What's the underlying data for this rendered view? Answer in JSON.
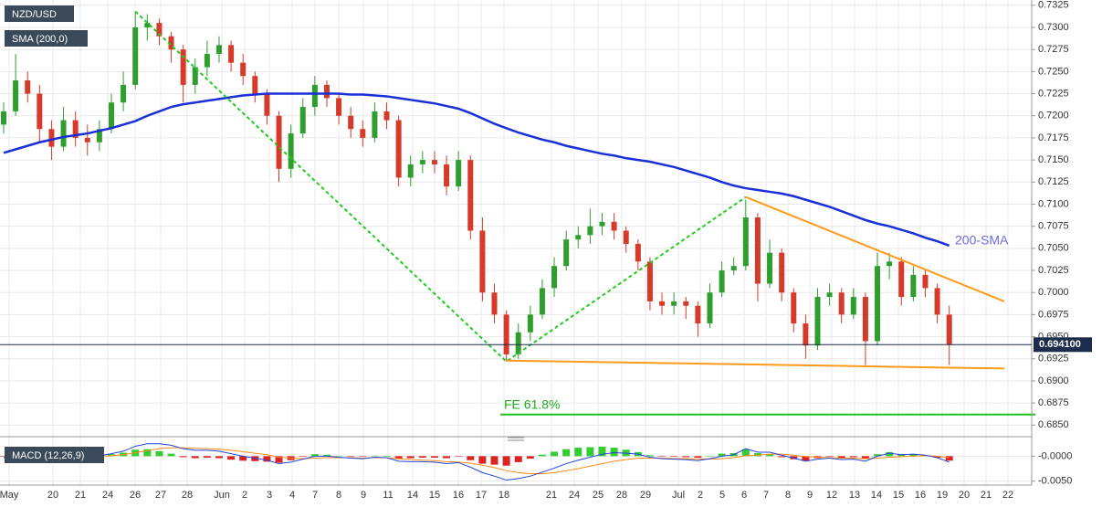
{
  "chart_data": {
    "type": "candlestick",
    "title": "NZD/USD",
    "up_color": "#2f9e2f",
    "down_color": "#d63a2a",
    "ylim": [
      0.684,
      0.7331
    ],
    "yticks": [
      {
        "value": 0.7325,
        "label": "0.7325"
      },
      {
        "value": 0.73,
        "label": "0.7300"
      },
      {
        "value": 0.7275,
        "label": "0.7275"
      },
      {
        "value": 0.725,
        "label": "0.7250"
      },
      {
        "value": 0.7225,
        "label": "0.7225"
      },
      {
        "value": 0.72,
        "label": "0.7200"
      },
      {
        "value": 0.7175,
        "label": "0.7175"
      },
      {
        "value": 0.715,
        "label": "0.7150"
      },
      {
        "value": 0.7125,
        "label": "0.7125"
      },
      {
        "value": 0.71,
        "label": "0.7100"
      },
      {
        "value": 0.7075,
        "label": "0.7075"
      },
      {
        "value": 0.705,
        "label": "0.7050"
      },
      {
        "value": 0.7025,
        "label": "0.7025"
      },
      {
        "value": 0.7,
        "label": "0.7000"
      },
      {
        "value": 0.6975,
        "label": "0.6975"
      },
      {
        "value": 0.695,
        "label": "0.6950"
      },
      {
        "value": 0.6925,
        "label": "0.6925"
      },
      {
        "value": 0.69,
        "label": "0.6900"
      },
      {
        "value": 0.6875,
        "label": "0.6875"
      },
      {
        "value": 0.685,
        "label": "0.6850"
      }
    ],
    "grid": true,
    "xlabels": [
      "May",
      "20",
      "21",
      "24",
      "26",
      "27",
      "28",
      "Jun",
      "2",
      "3",
      "4",
      "7",
      "8",
      "9",
      "11",
      "14",
      "15",
      "16",
      "17",
      "18",
      "21",
      "24",
      "25",
      "28",
      "29",
      "Jul",
      "2",
      "5",
      "6",
      "7",
      "8",
      "9",
      "12",
      "13",
      "14",
      "15",
      "16",
      "19",
      "20",
      "21",
      "22"
    ],
    "ohlc": [
      [
        0.719,
        0.7215,
        0.718,
        0.7205
      ],
      [
        0.7205,
        0.727,
        0.72,
        0.724
      ],
      [
        0.724,
        0.725,
        0.7215,
        0.7225
      ],
      [
        0.7225,
        0.7235,
        0.717,
        0.7185
      ],
      [
        0.7185,
        0.7195,
        0.715,
        0.7165
      ],
      [
        0.7165,
        0.721,
        0.716,
        0.7195
      ],
      [
        0.7195,
        0.7205,
        0.7165,
        0.7175
      ],
      [
        0.7175,
        0.719,
        0.7155,
        0.717
      ],
      [
        0.717,
        0.7195,
        0.716,
        0.7185
      ],
      [
        0.7185,
        0.7225,
        0.718,
        0.7215
      ],
      [
        0.7215,
        0.725,
        0.7205,
        0.7235
      ],
      [
        0.7235,
        0.7318,
        0.723,
        0.73
      ],
      [
        0.73,
        0.7315,
        0.7285,
        0.7305
      ],
      [
        0.7305,
        0.731,
        0.728,
        0.729
      ],
      [
        0.729,
        0.7295,
        0.726,
        0.7275
      ],
      [
        0.7275,
        0.728,
        0.7215,
        0.7235
      ],
      [
        0.7235,
        0.7265,
        0.7225,
        0.7255
      ],
      [
        0.7255,
        0.7285,
        0.7245,
        0.727
      ],
      [
        0.727,
        0.729,
        0.726,
        0.728
      ],
      [
        0.728,
        0.7285,
        0.725,
        0.726
      ],
      [
        0.726,
        0.727,
        0.7235,
        0.7245
      ],
      [
        0.7245,
        0.725,
        0.7215,
        0.7225
      ],
      [
        0.7225,
        0.723,
        0.719,
        0.72
      ],
      [
        0.72,
        0.7205,
        0.7125,
        0.714
      ],
      [
        0.714,
        0.719,
        0.713,
        0.718
      ],
      [
        0.718,
        0.722,
        0.7175,
        0.721
      ],
      [
        0.721,
        0.7245,
        0.72,
        0.7235
      ],
      [
        0.7235,
        0.724,
        0.721,
        0.722
      ],
      [
        0.722,
        0.7225,
        0.719,
        0.72
      ],
      [
        0.72,
        0.721,
        0.7175,
        0.7185
      ],
      [
        0.7185,
        0.7195,
        0.7165,
        0.7175
      ],
      [
        0.7175,
        0.7215,
        0.717,
        0.7205
      ],
      [
        0.7205,
        0.7215,
        0.7185,
        0.7195
      ],
      [
        0.7195,
        0.72,
        0.712,
        0.713
      ],
      [
        0.713,
        0.7155,
        0.712,
        0.7145
      ],
      [
        0.7145,
        0.716,
        0.7135,
        0.715
      ],
      [
        0.715,
        0.716,
        0.7135,
        0.7145
      ],
      [
        0.7145,
        0.7155,
        0.711,
        0.712
      ],
      [
        0.712,
        0.716,
        0.7115,
        0.715
      ],
      [
        0.715,
        0.7155,
        0.706,
        0.707
      ],
      [
        0.707,
        0.7085,
        0.699,
        0.7
      ],
      [
        0.7,
        0.701,
        0.6965,
        0.6975
      ],
      [
        0.6975,
        0.698,
        0.6922,
        0.693
      ],
      [
        0.693,
        0.6965,
        0.6925,
        0.6955
      ],
      [
        0.6955,
        0.6985,
        0.6945,
        0.6975
      ],
      [
        0.6975,
        0.7015,
        0.697,
        0.7005
      ],
      [
        0.7005,
        0.704,
        0.6995,
        0.703
      ],
      [
        0.703,
        0.707,
        0.7025,
        0.706
      ],
      [
        0.706,
        0.7075,
        0.705,
        0.7065
      ],
      [
        0.7065,
        0.7095,
        0.7055,
        0.7075
      ],
      [
        0.7075,
        0.709,
        0.7065,
        0.708
      ],
      [
        0.708,
        0.709,
        0.706,
        0.707
      ],
      [
        0.707,
        0.7075,
        0.7045,
        0.7055
      ],
      [
        0.7055,
        0.706,
        0.7025,
        0.7035
      ],
      [
        0.7035,
        0.704,
        0.698,
        0.699
      ],
      [
        0.699,
        0.7,
        0.6975,
        0.6985
      ],
      [
        0.6985,
        0.7,
        0.6975,
        0.699
      ],
      [
        0.699,
        0.6995,
        0.697,
        0.6985
      ],
      [
        0.6985,
        0.699,
        0.695,
        0.6965
      ],
      [
        0.6965,
        0.701,
        0.696,
        0.7
      ],
      [
        0.7,
        0.7035,
        0.6995,
        0.7025
      ],
      [
        0.7025,
        0.704,
        0.702,
        0.703
      ],
      [
        0.703,
        0.7105,
        0.7025,
        0.7085
      ],
      [
        0.7085,
        0.709,
        0.699,
        0.701
      ],
      [
        0.701,
        0.706,
        0.7005,
        0.7045
      ],
      [
        0.7045,
        0.705,
        0.699,
        0.7
      ],
      [
        0.7,
        0.7005,
        0.6955,
        0.6965
      ],
      [
        0.6965,
        0.6975,
        0.6925,
        0.694
      ],
      [
        0.694,
        0.7005,
        0.6935,
        0.6995
      ],
      [
        0.6995,
        0.701,
        0.6985,
        0.7
      ],
      [
        0.7,
        0.7005,
        0.6965,
        0.6975
      ],
      [
        0.6975,
        0.7005,
        0.697,
        0.6995
      ],
      [
        0.6995,
        0.7,
        0.6918,
        0.6945
      ],
      [
        0.6945,
        0.7045,
        0.694,
        0.703
      ],
      [
        0.703,
        0.7045,
        0.7015,
        0.7035
      ],
      [
        0.7035,
        0.704,
        0.6985,
        0.6995
      ],
      [
        0.6995,
        0.703,
        0.699,
        0.702
      ],
      [
        0.702,
        0.7025,
        0.6995,
        0.7005
      ],
      [
        0.7005,
        0.701,
        0.6965,
        0.6975
      ],
      [
        0.6975,
        0.6985,
        0.6918,
        0.6941
      ]
    ],
    "sma": {
      "name": "SMA (200,0)",
      "color": "#1a2fd6",
      "values": [
        0.7158,
        0.7162,
        0.7166,
        0.717,
        0.7173,
        0.7176,
        0.7178,
        0.718,
        0.7183,
        0.7186,
        0.719,
        0.7194,
        0.72,
        0.7205,
        0.721,
        0.7213,
        0.7215,
        0.7217,
        0.7219,
        0.7221,
        0.7223,
        0.7224,
        0.7225,
        0.7225,
        0.7225,
        0.7225,
        0.7225,
        0.7225,
        0.7225,
        0.7224,
        0.7224,
        0.7223,
        0.7222,
        0.722,
        0.7218,
        0.7216,
        0.7214,
        0.7211,
        0.7208,
        0.7203,
        0.7197,
        0.7191,
        0.7186,
        0.7181,
        0.7177,
        0.7173,
        0.717,
        0.7166,
        0.7163,
        0.716,
        0.7157,
        0.7155,
        0.7152,
        0.715,
        0.7148,
        0.7145,
        0.7142,
        0.7138,
        0.7134,
        0.713,
        0.7125,
        0.7121,
        0.7118,
        0.7116,
        0.7114,
        0.7112,
        0.7109,
        0.7105,
        0.7101,
        0.7097,
        0.7092,
        0.7087,
        0.7082,
        0.7078,
        0.7075,
        0.7071,
        0.7067,
        0.7062,
        0.7058,
        0.7053
      ]
    },
    "lines": [
      {
        "color": "#22cc22",
        "style": "dotted",
        "points": [
          [
            11,
            0.7318
          ],
          [
            42,
            0.6922
          ],
          [
            62,
            0.7108
          ]
        ]
      },
      {
        "color": "#ff9a1a",
        "style": "solid",
        "points": [
          [
            62,
            0.7108
          ],
          [
            83.6,
            0.699
          ]
        ]
      },
      {
        "color": "#ff9a1a",
        "style": "solid",
        "points": [
          [
            42,
            0.6923
          ],
          [
            83.6,
            0.6914
          ]
        ]
      },
      {
        "color": "#1fbf1f",
        "style": "solid",
        "points": [
          [
            41.5,
            0.6862
          ],
          [
            86.2,
            0.6862
          ]
        ]
      }
    ],
    "annotations": [
      "200-SMA",
      "FE 61.8%"
    ],
    "last_price": {
      "value": 0.6941,
      "label": "0.694100"
    },
    "macd": {
      "name": "MACD (12,26,9)",
      "ylim": [
        -0.0058,
        0.003
      ],
      "yticks": [
        {
          "value": 0,
          "label": "-0.0000"
        },
        {
          "value": -0.005,
          "label": "-0.0050"
        }
      ],
      "macd_color": "#2244dd",
      "signal_color": "#ff8a1a",
      "up_color": "#33cc33",
      "down_color": "#dd2222",
      "macd": [
        -0.0003,
        0,
        0.0002,
        0.0001,
        -0.0001,
        0,
        0,
        -0.0001,
        0.0001,
        0.0005,
        0.001,
        0.002,
        0.0025,
        0.0025,
        0.0022,
        0.0015,
        0.0012,
        0.0012,
        0.001,
        0.0005,
        0,
        -0.0004,
        -0.0008,
        -0.0015,
        -0.0012,
        -0.0006,
        0,
        0,
        -0.0002,
        -0.0004,
        -0.0005,
        -0.0002,
        -0.0003,
        -0.001,
        -0.0011,
        -0.0011,
        -0.0012,
        -0.0015,
        -0.0013,
        -0.0022,
        -0.0033,
        -0.004,
        -0.0048,
        -0.0045,
        -0.004,
        -0.0032,
        -0.0024,
        -0.0015,
        -0.0008,
        -0.0002,
        0.0004,
        0.0007,
        0.0006,
        0.0004,
        -0.0002,
        -0.0005,
        -0.0006,
        -0.0007,
        -0.0009,
        -0.0005,
        0,
        0.0003,
        0.0015,
        0.0008,
        0.0008,
        0.0002,
        -0.0004,
        -0.001,
        -0.0006,
        -0.0004,
        -0.0007,
        -0.0006,
        -0.001,
        0,
        0.0006,
        0.0003,
        0.0004,
        0.0002,
        -0.0003,
        -0.0012
      ],
      "signal": [
        -0.0002,
        -0.0002,
        -0.0001,
        0,
        0,
        0,
        0,
        0,
        0,
        0.0001,
        0.0003,
        0.0007,
        0.0011,
        0.0015,
        0.0017,
        0.0017,
        0.0016,
        0.0015,
        0.0014,
        0.0012,
        0.0009,
        0.0006,
        0.0003,
        -0.0002,
        -0.0004,
        -0.0005,
        -0.0004,
        -0.0003,
        -0.0003,
        -0.0003,
        -0.0004,
        -0.0003,
        -0.0003,
        -0.0005,
        -0.0007,
        -0.0008,
        -0.0009,
        -0.0011,
        -0.0012,
        -0.0014,
        -0.0018,
        -0.0023,
        -0.0029,
        -0.0033,
        -0.0035,
        -0.0035,
        -0.0033,
        -0.0029,
        -0.0025,
        -0.002,
        -0.0015,
        -0.001,
        -0.0007,
        -0.0004,
        -0.0004,
        -0.0004,
        -0.0005,
        -0.0005,
        -0.0006,
        -0.0006,
        -0.0005,
        -0.0003,
        0.0001,
        0.0002,
        0.0004,
        0.0004,
        0.0002,
        -0.0001,
        -0.0002,
        -0.0003,
        -0.0004,
        -0.0004,
        -0.0005,
        -0.0004,
        -0.0002,
        -0.0001,
        0,
        0.0001,
        0,
        -0.0003
      ],
      "histogram": [
        -0.0001,
        0.0002,
        0.0003,
        0.0001,
        -0.0001,
        0,
        0,
        -0.0001,
        0.0001,
        0.0004,
        0.0007,
        0.0013,
        0.0014,
        0.001,
        0.0005,
        -0.0002,
        -0.0004,
        -0.0003,
        -0.0004,
        -0.0007,
        -0.0009,
        -0.001,
        -0.0011,
        -0.0013,
        -0.0008,
        -0.0001,
        0.0004,
        0.0003,
        0.0001,
        -0.0001,
        -0.0001,
        0.0001,
        0,
        -0.0005,
        -0.0004,
        -0.0003,
        -0.0003,
        -0.0004,
        -0.0001,
        -0.0008,
        -0.0015,
        -0.0017,
        -0.0019,
        -0.0012,
        -0.0005,
        0.0003,
        0.0009,
        0.0014,
        0.0017,
        0.0018,
        0.0019,
        0.0017,
        0.0013,
        0.0008,
        0.0002,
        -0.0001,
        -0.0001,
        -0.0002,
        -0.0003,
        0.0001,
        0.0005,
        0.0006,
        0.0014,
        0.0006,
        0.0004,
        -0.0002,
        -0.0006,
        -0.0009,
        -0.0004,
        -0.0001,
        -0.0003,
        -0.0002,
        -0.0005,
        0.0004,
        0.0008,
        0.0004,
        0.0004,
        0.0001,
        -0.0003,
        -0.0009
      ]
    }
  }
}
